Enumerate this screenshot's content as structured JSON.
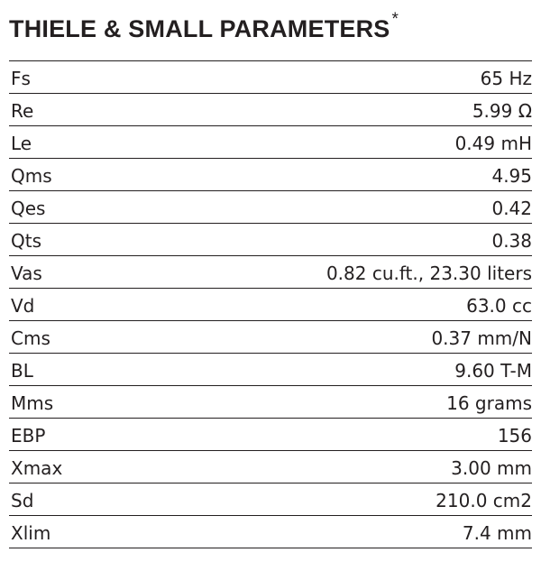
{
  "title": "THIELE & SMALL PARAMETERS",
  "title_mark": "*",
  "parameters": [
    {
      "label": "Fs",
      "value": "65 Hz"
    },
    {
      "label": "Re",
      "value": "5.99 Ω"
    },
    {
      "label": "Le",
      "value": "0.49 mH"
    },
    {
      "label": "Qms",
      "value": "4.95"
    },
    {
      "label": "Qes",
      "value": "0.42"
    },
    {
      "label": "Qts",
      "value": "0.38"
    },
    {
      "label": "Vas",
      "value": "0.82 cu.ft., 23.30 liters"
    },
    {
      "label": "Vd",
      "value": "63.0 cc"
    },
    {
      "label": "Cms",
      "value": "0.37 mm/N"
    },
    {
      "label": "BL",
      "value": "9.60 T-M"
    },
    {
      "label": "Mms",
      "value": "16 grams"
    },
    {
      "label": "EBP",
      "value": "156"
    },
    {
      "label": "Xmax",
      "value": "3.00 mm"
    },
    {
      "label": "Sd",
      "value": "210.0 cm2"
    },
    {
      "label": "Xlim",
      "value": "7.4 mm"
    }
  ]
}
